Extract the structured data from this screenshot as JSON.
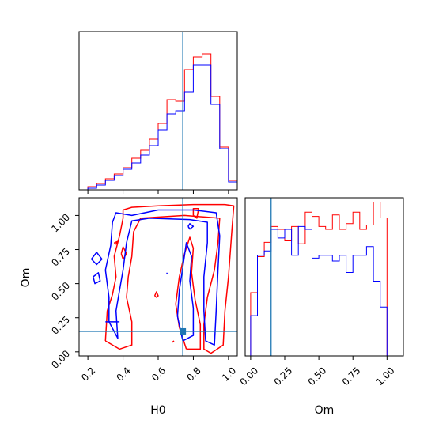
{
  "chart_data": [
    {
      "panel": "H0 marginal",
      "type": "histogram",
      "xlim": [
        0.15,
        1.05
      ],
      "truth": 0.74,
      "series": [
        {
          "color": "#ff0000",
          "bins": [
            0.2,
            0.25,
            0.3,
            0.35,
            0.4,
            0.45,
            0.5,
            0.55,
            0.6,
            0.65,
            0.7,
            0.75,
            0.8,
            0.85,
            0.9,
            0.95,
            1.0,
            1.05
          ],
          "heights": [
            0.02,
            0.04,
            0.07,
            0.1,
            0.14,
            0.2,
            0.25,
            0.32,
            0.42,
            0.57,
            0.56,
            0.76,
            0.84,
            0.86,
            0.59,
            0.27,
            0.06
          ]
        },
        {
          "color": "#0000ff",
          "bins": [
            0.2,
            0.25,
            0.3,
            0.35,
            0.4,
            0.45,
            0.5,
            0.55,
            0.6,
            0.65,
            0.7,
            0.75,
            0.8,
            0.85,
            0.9,
            0.95,
            1.0,
            1.05
          ],
          "heights": [
            0.01,
            0.03,
            0.06,
            0.09,
            0.13,
            0.17,
            0.22,
            0.28,
            0.38,
            0.48,
            0.5,
            0.62,
            0.79,
            0.79,
            0.54,
            0.26,
            0.05
          ]
        }
      ]
    },
    {
      "panel": "H0 vs Om joint",
      "type": "contour",
      "xlabel": "H0",
      "ylabel": "Om",
      "xlim": [
        0.15,
        1.05
      ],
      "ylim": [
        -0.03,
        1.13
      ],
      "xticks": [
        "0.2",
        "0.4",
        "0.6",
        "0.8",
        "1.0"
      ],
      "yticks": [
        "0.00",
        "0.25",
        "0.50",
        "0.75",
        "1.00"
      ],
      "truth": {
        "x": 0.74,
        "y": 0.15
      },
      "contours": [
        {
          "color": "#ff0000",
          "level": "outer",
          "points": [
            [
              0.3,
              0.08
            ],
            [
              0.31,
              0.3
            ],
            [
              0.34,
              0.42
            ],
            [
              0.36,
              0.55
            ],
            [
              0.35,
              0.7
            ],
            [
              0.38,
              0.85
            ],
            [
              0.4,
              0.98
            ],
            [
              0.4,
              1.04
            ],
            [
              0.45,
              1.06
            ],
            [
              0.6,
              1.07
            ],
            [
              0.8,
              1.08
            ],
            [
              0.98,
              1.08
            ],
            [
              1.03,
              1.07
            ],
            [
              1.02,
              0.9
            ],
            [
              1.0,
              0.55
            ],
            [
              0.98,
              0.3
            ],
            [
              0.97,
              0.05
            ],
            [
              0.9,
              -0.01
            ],
            [
              0.86,
              0.02
            ],
            [
              0.86,
              0.2
            ],
            [
              0.88,
              0.4
            ],
            [
              0.92,
              0.6
            ],
            [
              0.94,
              0.8
            ],
            [
              0.95,
              0.98
            ],
            [
              0.75,
              1.0
            ],
            [
              0.5,
              0.98
            ],
            [
              0.46,
              0.88
            ],
            [
              0.45,
              0.7
            ],
            [
              0.43,
              0.55
            ],
            [
              0.42,
              0.4
            ],
            [
              0.45,
              0.22
            ],
            [
              0.45,
              0.05
            ],
            [
              0.38,
              0.02
            ],
            [
              0.3,
              0.08
            ]
          ]
        },
        {
          "color": "#ff0000",
          "level": "inner",
          "points": [
            [
              0.76,
              0.02
            ],
            [
              0.72,
              0.18
            ],
            [
              0.7,
              0.35
            ],
            [
              0.72,
              0.55
            ],
            [
              0.75,
              0.72
            ],
            [
              0.78,
              0.84
            ],
            [
              0.8,
              0.76
            ],
            [
              0.79,
              0.58
            ],
            [
              0.81,
              0.38
            ],
            [
              0.84,
              0.2
            ],
            [
              0.84,
              0.02
            ],
            [
              0.76,
              0.02
            ]
          ]
        },
        {
          "color": "#ff0000",
          "level": "island",
          "points": [
            [
              0.39,
              0.72
            ],
            [
              0.4,
              0.77
            ],
            [
              0.42,
              0.72
            ],
            [
              0.4,
              0.68
            ],
            [
              0.39,
              0.72
            ]
          ]
        },
        {
          "color": "#ff0000",
          "level": "island",
          "points": [
            [
              0.35,
              0.8
            ],
            [
              0.37,
              0.81
            ],
            [
              0.36,
              0.79
            ],
            [
              0.35,
              0.8
            ]
          ]
        },
        {
          "color": "#ff0000",
          "level": "island",
          "points": [
            [
              0.58,
              0.41
            ],
            [
              0.59,
              0.44
            ],
            [
              0.6,
              0.41
            ],
            [
              0.59,
              0.4
            ],
            [
              0.58,
              0.41
            ]
          ]
        },
        {
          "color": "#ff0000",
          "level": "island",
          "points": [
            [
              0.8,
              1.0
            ],
            [
              0.8,
              1.05
            ],
            [
              0.83,
              1.05
            ],
            [
              0.82,
              0.98
            ],
            [
              0.8,
              1.0
            ]
          ]
        },
        {
          "color": "#0000ff",
          "level": "outer",
          "points": [
            [
              0.32,
              0.22
            ],
            [
              0.32,
              0.4
            ],
            [
              0.3,
              0.6
            ],
            [
              0.33,
              0.78
            ],
            [
              0.34,
              0.95
            ],
            [
              0.36,
              1.02
            ],
            [
              0.45,
              1.0
            ],
            [
              0.6,
              1.04
            ],
            [
              0.8,
              1.04
            ],
            [
              0.93,
              1.02
            ],
            [
              0.95,
              0.85
            ],
            [
              0.94,
              0.6
            ],
            [
              0.93,
              0.3
            ],
            [
              0.92,
              0.05
            ],
            [
              0.87,
              0.08
            ],
            [
              0.86,
              0.3
            ],
            [
              0.86,
              0.55
            ],
            [
              0.88,
              0.8
            ],
            [
              0.88,
              0.95
            ],
            [
              0.78,
              0.97
            ],
            [
              0.55,
              0.98
            ],
            [
              0.45,
              0.96
            ],
            [
              0.42,
              0.8
            ],
            [
              0.4,
              0.6
            ],
            [
              0.38,
              0.45
            ],
            [
              0.36,
              0.3
            ],
            [
              0.37,
              0.1
            ],
            [
              0.32,
              0.22
            ]
          ]
        },
        {
          "color": "#0000ff",
          "level": "inner",
          "points": [
            [
              0.74,
              0.08
            ],
            [
              0.71,
              0.26
            ],
            [
              0.72,
              0.45
            ],
            [
              0.74,
              0.62
            ],
            [
              0.76,
              0.8
            ],
            [
              0.79,
              0.7
            ],
            [
              0.78,
              0.52
            ],
            [
              0.8,
              0.32
            ],
            [
              0.8,
              0.12
            ],
            [
              0.74,
              0.08
            ]
          ]
        },
        {
          "color": "#0000ff",
          "level": "island",
          "points": [
            [
              0.22,
              0.68
            ],
            [
              0.25,
              0.73
            ],
            [
              0.28,
              0.68
            ],
            [
              0.25,
              0.64
            ],
            [
              0.22,
              0.68
            ]
          ]
        },
        {
          "color": "#0000ff",
          "level": "island",
          "points": [
            [
              0.23,
              0.55
            ],
            [
              0.26,
              0.58
            ],
            [
              0.27,
              0.52
            ],
            [
              0.24,
              0.5
            ],
            [
              0.23,
              0.55
            ]
          ]
        },
        {
          "color": "#0000ff",
          "level": "island",
          "points": [
            [
              0.77,
              0.92
            ],
            [
              0.78,
              0.94
            ],
            [
              0.8,
              0.92
            ],
            [
              0.78,
              0.9
            ],
            [
              0.77,
              0.92
            ]
          ]
        }
      ],
      "segments": [
        {
          "color": "#0000ff",
          "points": [
            [
              0.3,
              0.22
            ],
            [
              0.38,
              0.22
            ]
          ]
        },
        {
          "color": "#0000ff",
          "points": [
            [
              0.65,
              0.57
            ],
            [
              0.65,
              0.58
            ]
          ]
        },
        {
          "color": "#ff0000",
          "points": [
            [
              0.68,
              0.07
            ],
            [
              0.69,
              0.08
            ]
          ]
        }
      ]
    },
    {
      "panel": "Om marginal",
      "type": "histogram",
      "xlabel": "Om",
      "xlim": [
        -0.04,
        1.12
      ],
      "xticks": [
        "0.00",
        "0.25",
        "0.50",
        "0.75",
        "1.00"
      ],
      "truth": 0.15,
      "series": [
        {
          "color": "#ff0000",
          "bins": [
            0.0,
            0.05,
            0.1,
            0.15,
            0.2,
            0.25,
            0.3,
            0.35,
            0.4,
            0.45,
            0.5,
            0.55,
            0.6,
            0.65,
            0.7,
            0.75,
            0.8,
            0.85,
            0.9,
            0.95,
            1.0
          ],
          "heights": [
            0.44,
            0.69,
            0.79,
            0.9,
            0.88,
            0.8,
            0.9,
            0.78,
            1.0,
            0.97,
            0.9,
            0.88,
            0.98,
            0.88,
            0.92,
            1.0,
            0.88,
            0.91,
            1.07,
            0.96
          ]
        },
        {
          "color": "#0000ff",
          "bins": [
            0.0,
            0.05,
            0.1,
            0.15,
            0.2,
            0.25,
            0.3,
            0.35,
            0.4,
            0.45,
            0.5,
            0.55,
            0.6,
            0.65,
            0.7,
            0.75,
            0.8,
            0.85,
            0.9,
            0.95,
            1.0
          ],
          "heights": [
            0.28,
            0.7,
            0.73,
            0.88,
            0.82,
            0.88,
            0.7,
            0.9,
            0.88,
            0.68,
            0.7,
            0.7,
            0.66,
            0.7,
            0.58,
            0.7,
            0.7,
            0.76,
            0.52,
            0.34
          ]
        }
      ]
    }
  ]
}
